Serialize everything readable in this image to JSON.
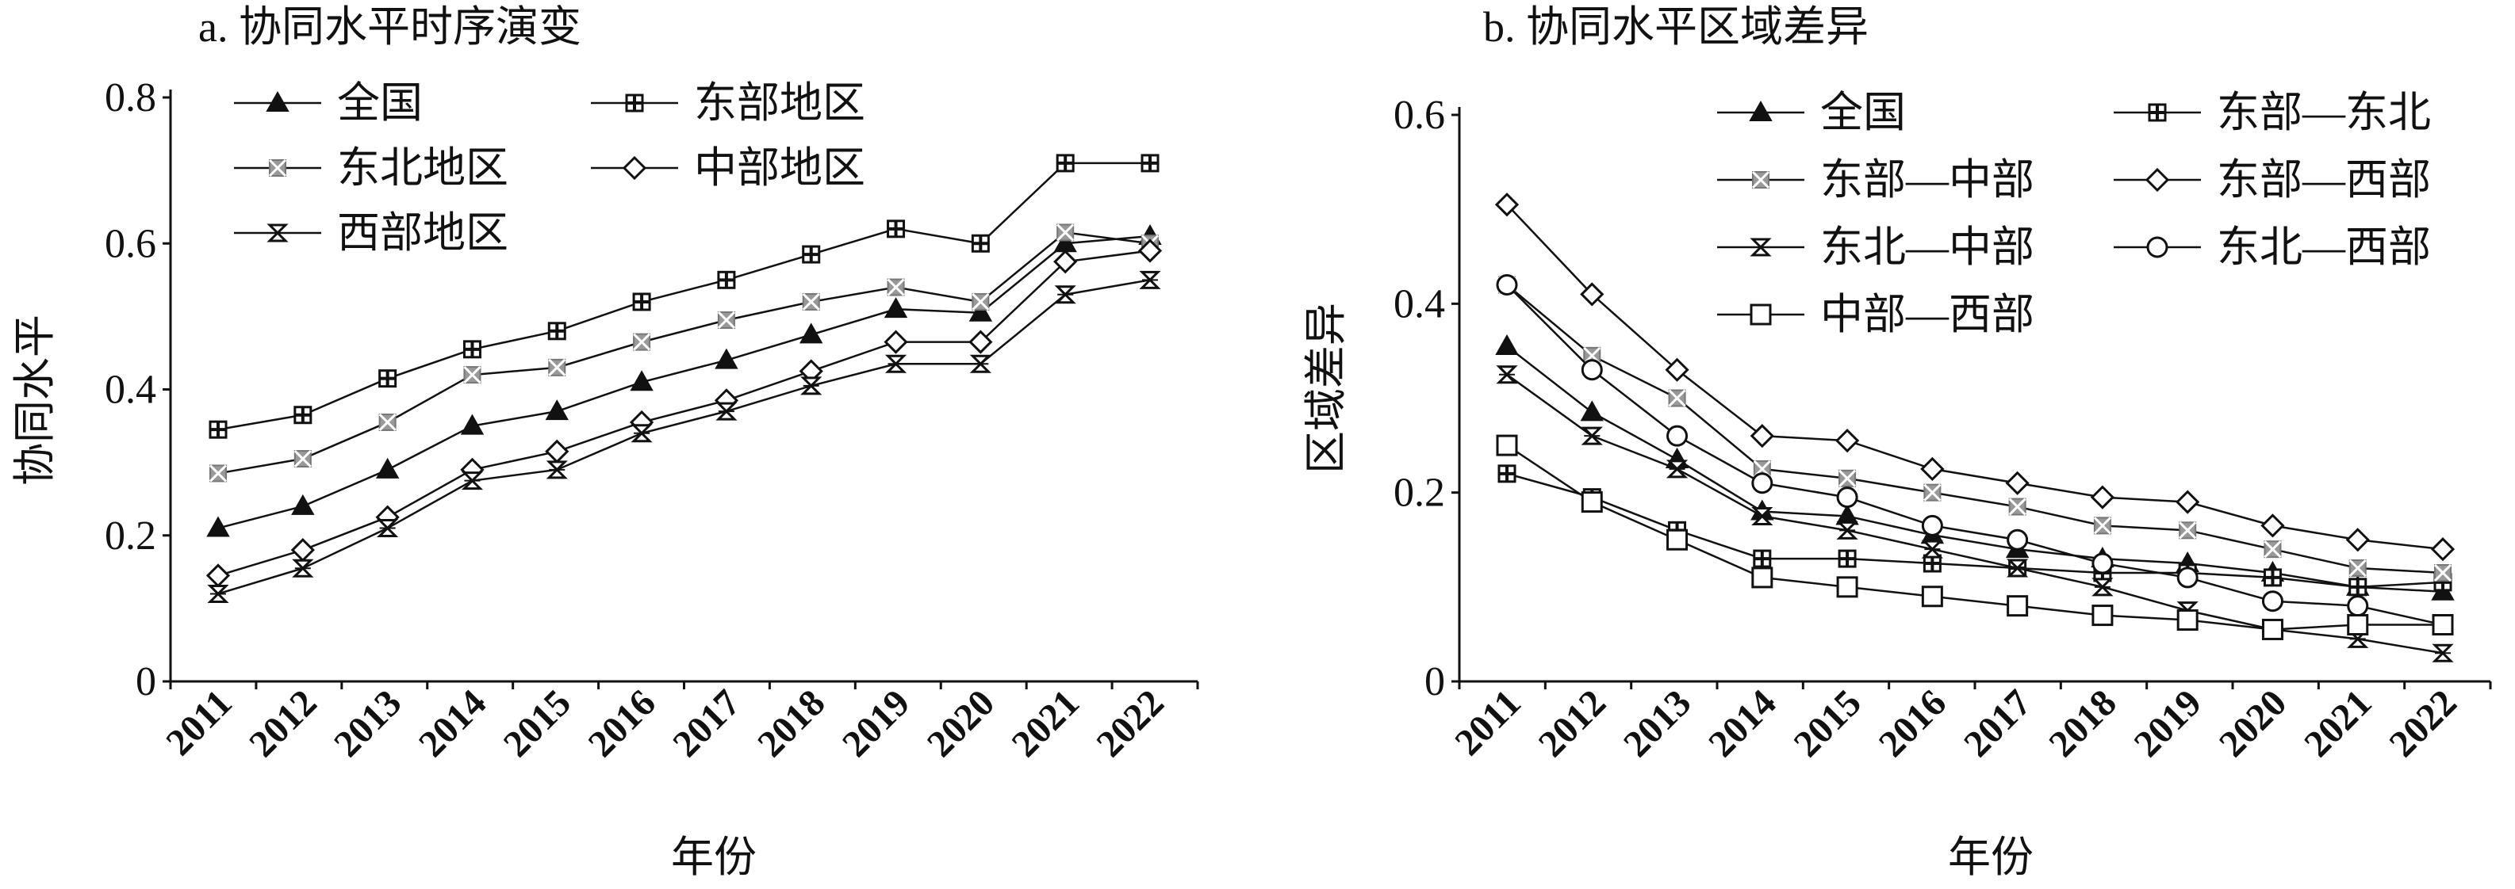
{
  "chart_data": [
    {
      "type": "line",
      "title": "a. 协同水平时序演变",
      "xlabel": "年份",
      "ylabel": "协同水平",
      "ylim": [
        0,
        0.8
      ],
      "yticks": [
        "0",
        "0.2",
        "0.4",
        "0.6",
        "0.8"
      ],
      "categories": [
        "2011",
        "2012",
        "2013",
        "2014",
        "2015",
        "2016",
        "2017",
        "2018",
        "2019",
        "2020",
        "2021",
        "2022"
      ],
      "legend_position": "top-left",
      "series": [
        {
          "name": "全国",
          "marker": "triangle",
          "values": [
            0.21,
            0.24,
            0.29,
            0.35,
            0.37,
            0.41,
            0.44,
            0.475,
            0.51,
            0.505,
            0.6,
            0.61
          ]
        },
        {
          "name": "东部地区",
          "marker": "square-cross",
          "values": [
            0.345,
            0.365,
            0.415,
            0.455,
            0.48,
            0.52,
            0.55,
            0.585,
            0.62,
            0.6,
            0.71,
            0.71
          ]
        },
        {
          "name": "东北地区",
          "marker": "x-square",
          "values": [
            0.285,
            0.305,
            0.355,
            0.42,
            0.43,
            0.465,
            0.495,
            0.52,
            0.54,
            0.52,
            0.615,
            0.6
          ]
        },
        {
          "name": "中部地区",
          "marker": "diamond",
          "values": [
            0.145,
            0.18,
            0.225,
            0.29,
            0.315,
            0.355,
            0.385,
            0.425,
            0.465,
            0.465,
            0.575,
            0.59
          ]
        },
        {
          "name": "西部地区",
          "marker": "hourglass",
          "values": [
            0.12,
            0.155,
            0.21,
            0.275,
            0.29,
            0.34,
            0.37,
            0.405,
            0.435,
            0.435,
            0.53,
            0.55
          ]
        }
      ]
    },
    {
      "type": "line",
      "title": "b. 协同水平区域差异",
      "xlabel": "年份",
      "ylabel": "区域差异",
      "ylim": [
        0,
        0.6
      ],
      "yticks": [
        "0",
        "0.2",
        "0.4",
        "0.6"
      ],
      "categories": [
        "2011",
        "2012",
        "2013",
        "2014",
        "2015",
        "2016",
        "2017",
        "2018",
        "2019",
        "2020",
        "2021",
        "2022"
      ],
      "legend_position": "top-right",
      "series": [
        {
          "name": "全国",
          "marker": "triangle",
          "values": [
            0.355,
            0.285,
            0.235,
            0.18,
            0.175,
            0.155,
            0.14,
            0.13,
            0.125,
            0.115,
            0.1,
            0.095
          ]
        },
        {
          "name": "东部—东北",
          "marker": "square-cross",
          "values": [
            0.22,
            0.195,
            0.16,
            0.13,
            0.13,
            0.125,
            0.12,
            0.115,
            0.115,
            0.11,
            0.1,
            0.105
          ]
        },
        {
          "name": "东部—中部",
          "marker": "x-square",
          "values": [
            0.42,
            0.345,
            0.3,
            0.225,
            0.215,
            0.2,
            0.185,
            0.165,
            0.16,
            0.14,
            0.12,
            0.115
          ]
        },
        {
          "name": "东部—西部",
          "marker": "diamond",
          "values": [
            0.505,
            0.41,
            0.33,
            0.26,
            0.255,
            0.225,
            0.21,
            0.195,
            0.19,
            0.165,
            0.15,
            0.14
          ]
        },
        {
          "name": "东北—中部",
          "marker": "hourglass",
          "values": [
            0.325,
            0.26,
            0.225,
            0.175,
            0.16,
            0.14,
            0.12,
            0.1,
            0.075,
            0.055,
            0.045,
            0.03
          ]
        },
        {
          "name": "东北—西部",
          "marker": "circle",
          "values": [
            0.42,
            0.33,
            0.26,
            0.21,
            0.195,
            0.165,
            0.15,
            0.125,
            0.11,
            0.085,
            0.08,
            0.06
          ]
        },
        {
          "name": "中部—西部",
          "marker": "square",
          "values": [
            0.25,
            0.19,
            0.15,
            0.11,
            0.1,
            0.09,
            0.08,
            0.07,
            0.065,
            0.055,
            0.06,
            0.06
          ]
        }
      ]
    }
  ]
}
